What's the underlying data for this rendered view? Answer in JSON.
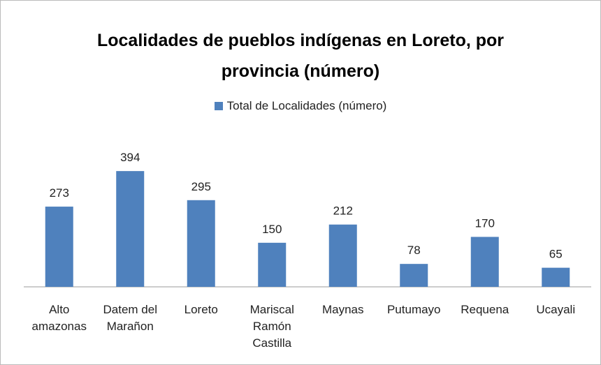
{
  "chart_data": {
    "type": "bar",
    "title": "Localidades de pueblos indígenas en Loreto, por provincia (número)",
    "categories": [
      "Alto amazonas",
      "Datem del Marañon",
      "Loreto",
      "Mariscal Ramón Castilla",
      "Maynas",
      "Putumayo",
      "Requena",
      "Ucayali"
    ],
    "series": [
      {
        "name": "Total de Localidades (número)",
        "color": "#4f81bd",
        "values": [
          273,
          394,
          295,
          150,
          212,
          78,
          170,
          65
        ]
      }
    ],
    "legend": "top"
  }
}
